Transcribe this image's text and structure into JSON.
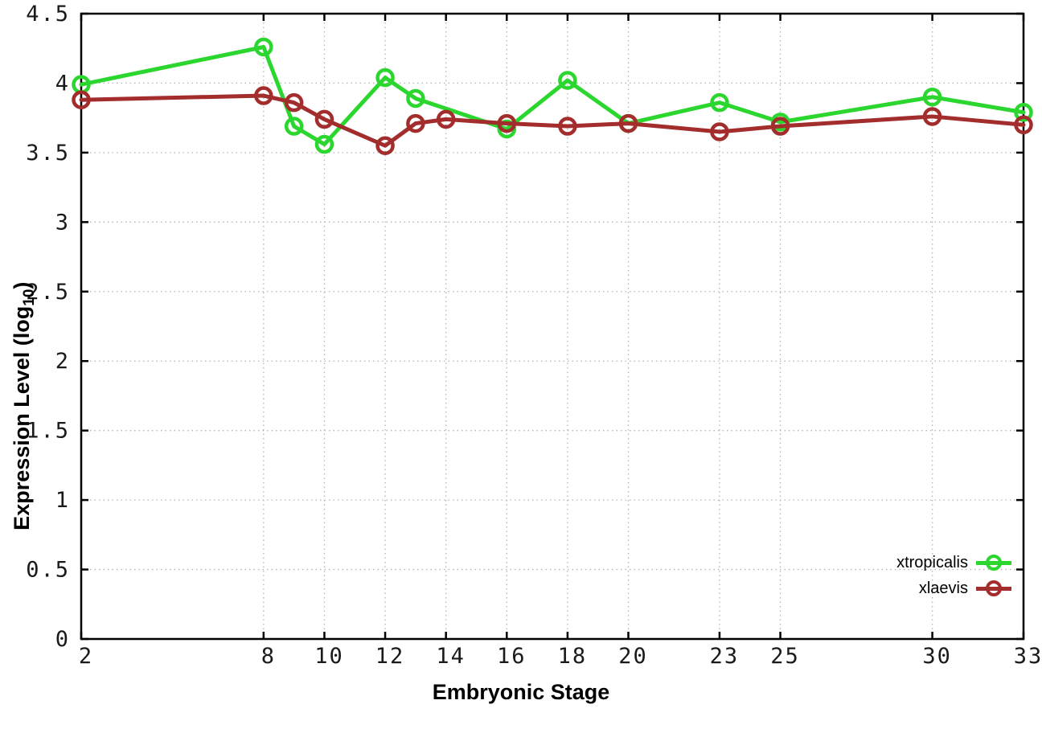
{
  "figure": {
    "background": "#ffffff",
    "xlabel": "Embryonic Stage",
    "ylabel_prefix": "Expression Level (log",
    "ylabel_sub": "10",
    "ylabel_suffix": ")"
  },
  "legend": {
    "position": "bottom-right",
    "entries": [
      {
        "label": "xtropicalis",
        "color": "#2bd62e"
      },
      {
        "label": "xlaevis",
        "color": "#a32c2c"
      }
    ]
  },
  "chart_data": {
    "type": "line",
    "title": "",
    "xlabel": "Embryonic Stage",
    "ylabel": "Expression Level (log10)",
    "xlim": [
      2,
      33
    ],
    "ylim": [
      0,
      4.5
    ],
    "xticks": [
      2,
      8,
      10,
      12,
      14,
      16,
      18,
      20,
      23,
      25,
      30,
      33
    ],
    "xtick_labels": [
      "2",
      "8",
      "10",
      "12",
      "14",
      "16",
      "18",
      "20",
      "23",
      "25",
      "30",
      "33"
    ],
    "yticks": [
      0,
      0.5,
      1,
      1.5,
      2,
      2.5,
      3,
      3.5,
      4,
      4.5
    ],
    "ytick_labels": [
      "0",
      "0.5",
      "1",
      "1.5",
      "2",
      "2.5",
      "3",
      "3.5",
      "4",
      "4.5"
    ],
    "grid": true,
    "grid_color": "#b4b4b4",
    "border_color": "#000000",
    "marker": "open-circle",
    "legend_position": "bottom-right",
    "series": [
      {
        "name": "xtropicalis",
        "color": "#2bd62e",
        "x": [
          2,
          8,
          9,
          10,
          12,
          13,
          16,
          18,
          20,
          23,
          25,
          30,
          33
        ],
        "y": [
          3.99,
          4.26,
          3.69,
          3.56,
          4.04,
          3.89,
          3.67,
          4.02,
          3.71,
          3.86,
          3.72,
          3.9,
          3.79
        ]
      },
      {
        "name": "xlaevis",
        "color": "#a32c2c",
        "x": [
          2,
          8,
          9,
          10,
          12,
          13,
          14,
          16,
          18,
          20,
          23,
          25,
          30,
          33
        ],
        "y": [
          3.88,
          3.91,
          3.86,
          3.74,
          3.55,
          3.71,
          3.74,
          3.71,
          3.69,
          3.71,
          3.65,
          3.69,
          3.76,
          3.7
        ]
      }
    ]
  }
}
